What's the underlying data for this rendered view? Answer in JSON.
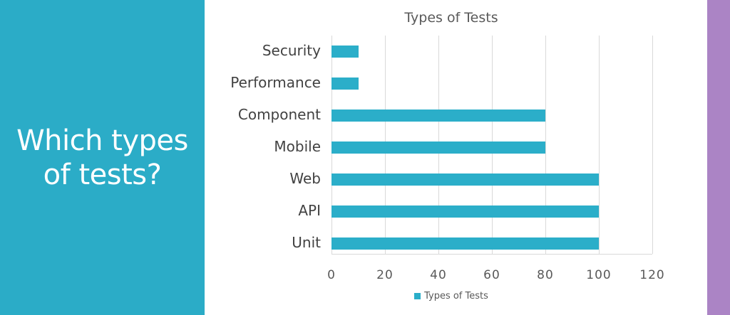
{
  "left_panel": {
    "headline_line1": "Which types",
    "headline_line2": "of tests?"
  },
  "colors": {
    "teal_panel": "#2BACC7",
    "purple_strip": "#AB84C5",
    "bar_teal": "#2BAEC9",
    "gridline": "#D9D9D9",
    "title_text": "#595959",
    "category_text": "#424242"
  },
  "chart_data": {
    "type": "bar",
    "orientation": "horizontal",
    "title": "Types of Tests",
    "categories": [
      "Security",
      "Performance",
      "Component",
      "Mobile",
      "Web",
      "API",
      "Unit"
    ],
    "values": [
      10,
      10,
      80,
      80,
      100,
      100,
      100
    ],
    "xlabel": "",
    "ylabel": "",
    "xlim": [
      0,
      120
    ],
    "xticks": [
      0,
      20,
      40,
      60,
      80,
      100,
      120
    ],
    "grid": "vertical-only",
    "legend_label": "Types of Tests",
    "legend_position": "bottom"
  }
}
